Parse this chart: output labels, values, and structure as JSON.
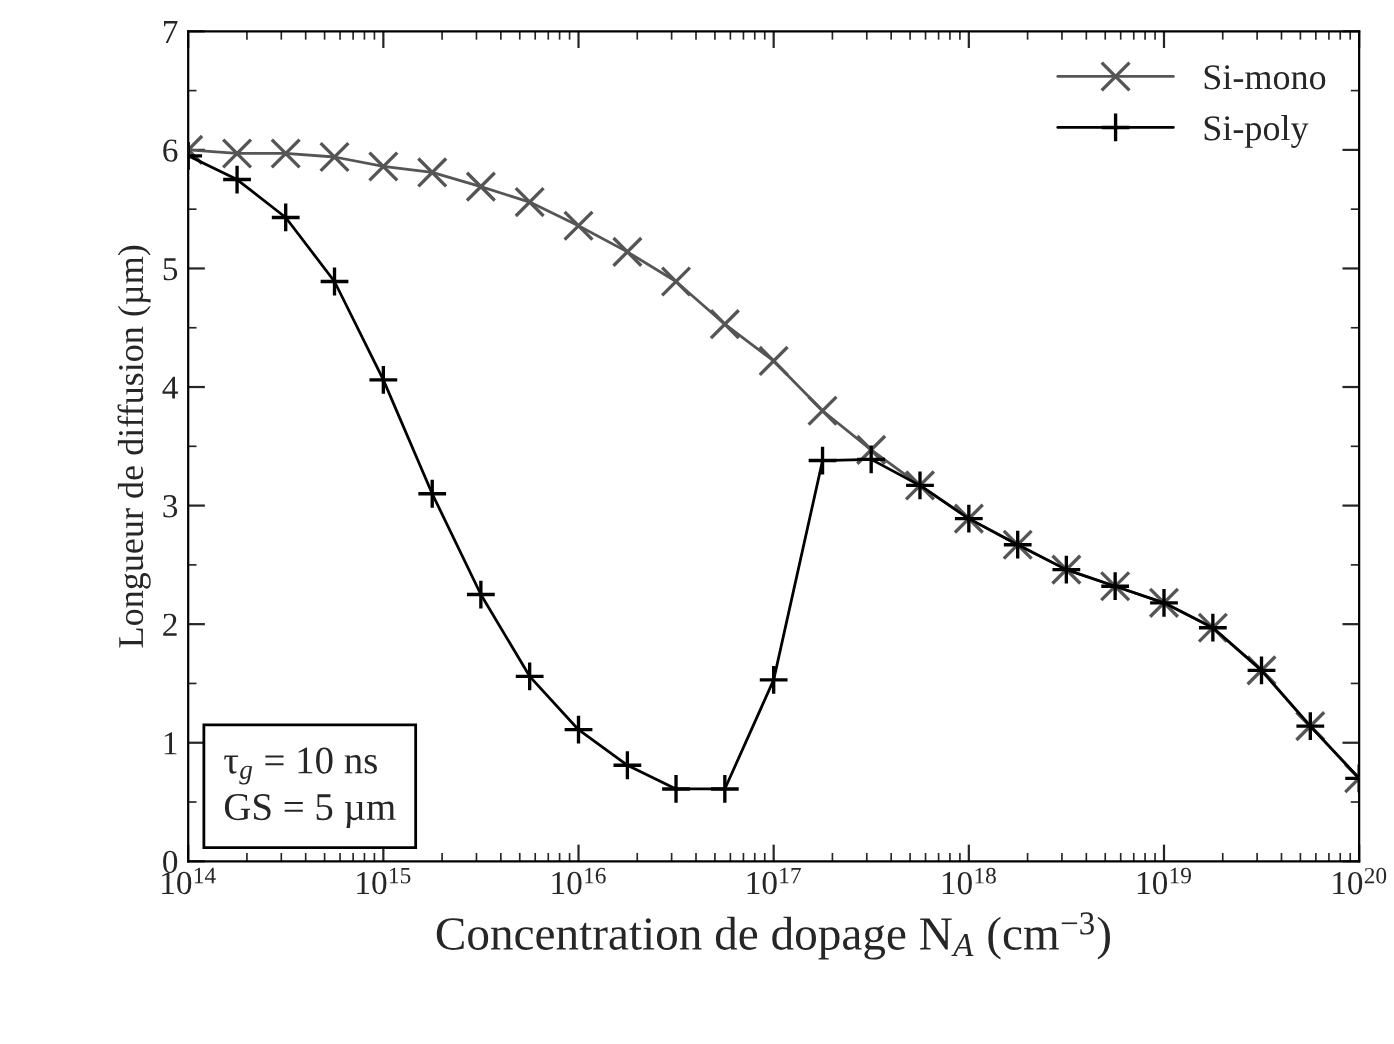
{
  "chart_data": {
    "type": "line",
    "xlabel": "Concentration de dopage N$_{A}$ (cm$^{−3}$)",
    "ylabel": "Longueur de diffusion (µm)",
    "log": "x",
    "x": [
      100000000000000.0,
      178000000000000.0,
      316000000000000.0,
      562000000000000.0,
      1000000000000000.0,
      1780000000000000.0,
      3160000000000000.0,
      5620000000000000.0,
      1e+16,
      1.78e+16,
      3.16e+16,
      5.62e+16,
      1e+17,
      1.78e+17,
      3.16e+17,
      5.62e+17,
      1e+18,
      1.78e+18,
      3.16e+18,
      5.62e+18,
      1e+19,
      1.78e+19,
      3.16e+19,
      5.62e+19,
      1e+20
    ],
    "series": [
      {
        "name": "Si-mono",
        "color": "#555555",
        "marker": "cross",
        "values": [
          6.0,
          5.97,
          5.97,
          5.94,
          5.86,
          5.81,
          5.69,
          5.56,
          5.36,
          5.14,
          4.89,
          4.53,
          4.22,
          3.8,
          3.47,
          3.17,
          2.89,
          2.67,
          2.46,
          2.32,
          2.18,
          1.97,
          1.61,
          1.14,
          0.7
        ]
      },
      {
        "name": "Si-poly",
        "color": "#000000",
        "marker": "plus",
        "values": [
          5.95,
          5.75,
          5.43,
          4.89,
          4.06,
          3.1,
          2.25,
          1.56,
          1.11,
          0.81,
          0.61,
          0.61,
          1.53,
          3.38,
          3.39,
          3.17,
          2.89,
          2.67,
          2.46,
          2.32,
          2.18,
          1.97,
          1.61,
          1.14,
          0.7
        ]
      }
    ],
    "line_style": "solid",
    "xlim": [
      100000000000000.0,
      1e+20
    ],
    "xticks": [
      {
        "value": 100000000000000.0,
        "label": "10$^{14}$"
      },
      {
        "value": 1000000000000000.0,
        "label": "10$^{15}$"
      },
      {
        "value": 1e+16,
        "label": "10$^{16}$"
      },
      {
        "value": 1e+17,
        "label": "10$^{17}$"
      },
      {
        "value": 1e+18,
        "label": "10$^{18}$"
      },
      {
        "value": 1e+19,
        "label": "10$^{19}$"
      },
      {
        "value": 1e+20,
        "label": "10$^{20}$"
      }
    ],
    "ylim": [
      0,
      7
    ],
    "yticks": [
      0,
      1,
      2,
      3,
      4,
      5,
      6,
      7
    ],
    "annotations": [
      "τ$_{g}$ = 10 ns",
      "GS = 5 µm"
    ],
    "grid": false,
    "legend": "top right"
  }
}
